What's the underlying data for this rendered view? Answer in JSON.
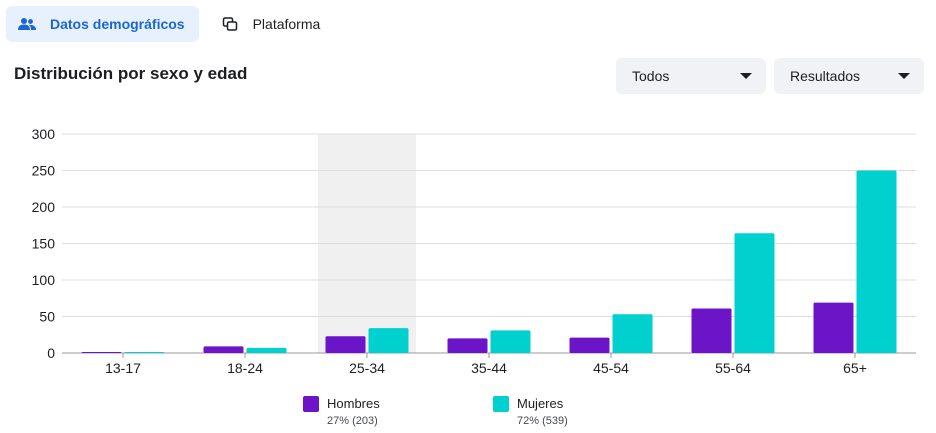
{
  "tabs": [
    {
      "label": "Datos demográficos",
      "icon": "people-icon",
      "active": true
    },
    {
      "label": "Plataforma",
      "icon": "platform-icon",
      "active": false
    }
  ],
  "section_title": "Distribución por sexo y edad",
  "filters": {
    "audience": {
      "value": "Todos"
    },
    "metric": {
      "value": "Resultados"
    }
  },
  "colors": {
    "hombres": "#6b14c8",
    "mujeres": "#00d1cf",
    "highlight": "#f0f0f0",
    "grid": "#dddddd"
  },
  "chart_data": {
    "type": "bar",
    "categories": [
      "13-17",
      "18-24",
      "25-34",
      "35-44",
      "45-54",
      "55-64",
      "65+"
    ],
    "series": [
      {
        "name": "Hombres",
        "values": [
          1,
          9,
          23,
          20,
          21,
          61,
          69
        ]
      },
      {
        "name": "Mujeres",
        "values": [
          1,
          7,
          34,
          31,
          53,
          164,
          250
        ]
      }
    ],
    "ylim": [
      0,
      300
    ],
    "yticks": [
      0,
      50,
      100,
      150,
      200,
      250,
      300
    ],
    "grid": true,
    "highlight_category": "25-34",
    "legend_position": "bottom"
  },
  "legend": [
    {
      "name": "Hombres",
      "sub": "27% (203)"
    },
    {
      "name": "Mujeres",
      "sub": "72% (539)"
    }
  ]
}
